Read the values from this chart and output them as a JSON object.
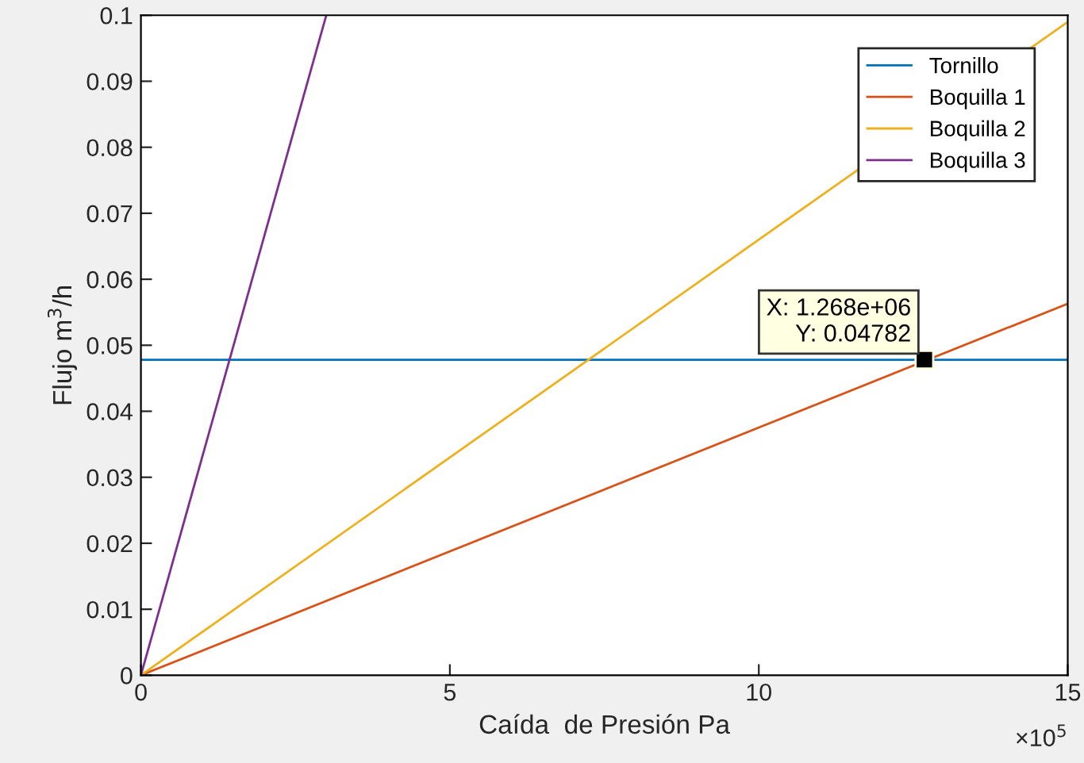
{
  "chart_data": {
    "type": "line",
    "xlabel": "Caída  de Presión Pa",
    "ylabel": "Flujo m$^{3}$/h",
    "xlim": [
      0,
      15
    ],
    "ylim": [
      0,
      0.1
    ],
    "xticks": [
      0,
      5,
      10,
      15
    ],
    "yticks": [
      0,
      0.01,
      0.02,
      0.03,
      0.04,
      0.05,
      0.06,
      0.07,
      0.08,
      0.09,
      0.1
    ],
    "series": [
      {
        "name": "Tornillo",
        "color": "#0072bd",
        "x": [
          0,
          15
        ],
        "values": [
          0.0478,
          0.0478
        ]
      },
      {
        "name": "Boquilla 1",
        "color": "#d95319",
        "x": [
          0,
          15
        ],
        "values": [
          0,
          0.0563
        ]
      },
      {
        "name": "Boquilla 2",
        "color": "#edb120",
        "x": [
          0,
          15
        ],
        "values": [
          0,
          0.099
        ]
      },
      {
        "name": "Boquilla 3",
        "color": "#7e2f8e",
        "x": [
          0,
          3
        ],
        "values": [
          0,
          0.1
        ]
      }
    ],
    "annotations": [
      {
        "text": "X: 1.268e+06\nY: 0.04782",
        "x": 12.68,
        "y": 0.04782
      },
      "×10$^{5}$"
    ],
    "legend": "top right",
    "grid": false,
    "marker": "none",
    "line_style": "solid"
  }
}
